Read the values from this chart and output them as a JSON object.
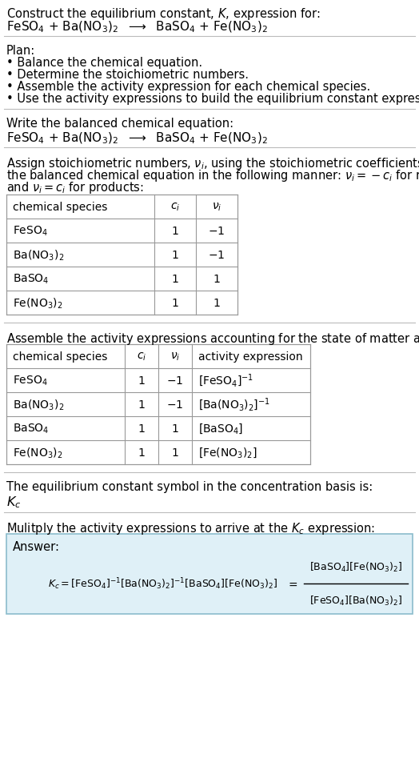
{
  "bg_color": "#ffffff",
  "text_color": "#000000",
  "title_line1": "Construct the equilibrium constant, $K$, expression for:",
  "reaction_equation": "FeSO$_4$ + Ba(NO$_3$)$_2$  $\\longrightarrow$  BaSO$_4$ + Fe(NO$_3$)$_2$",
  "plan_header": "Plan:",
  "plan_bullets": [
    "• Balance the chemical equation.",
    "• Determine the stoichiometric numbers.",
    "• Assemble the activity expression for each chemical species.",
    "• Use the activity expressions to build the equilibrium constant expression."
  ],
  "section2_header": "Write the balanced chemical equation:",
  "section2_equation": "FeSO$_4$ + Ba(NO$_3$)$_2$  $\\longrightarrow$  BaSO$_4$ + Fe(NO$_3$)$_2$",
  "section3_header_parts": [
    "Assign stoichiometric numbers, $\\nu_i$, using the stoichiometric coefficients, $c_i$, from",
    "the balanced chemical equation in the following manner: $\\nu_i = -c_i$ for reactants",
    "and $\\nu_i = c_i$ for products:"
  ],
  "table1_headers": [
    "chemical species",
    "$c_i$",
    "$\\nu_i$"
  ],
  "table1_rows": [
    [
      "FeSO$_4$",
      "1",
      "$-$1"
    ],
    [
      "Ba(NO$_3$)$_2$",
      "1",
      "$-$1"
    ],
    [
      "BaSO$_4$",
      "1",
      "1"
    ],
    [
      "Fe(NO$_3$)$_2$",
      "1",
      "1"
    ]
  ],
  "section4_header": "Assemble the activity expressions accounting for the state of matter and $\\nu_i$:",
  "table2_headers": [
    "chemical species",
    "$c_i$",
    "$\\nu_i$",
    "activity expression"
  ],
  "table2_rows": [
    [
      "FeSO$_4$",
      "1",
      "$-$1",
      "[FeSO$_4$]$^{-1}$"
    ],
    [
      "Ba(NO$_3$)$_2$",
      "1",
      "$-$1",
      "[Ba(NO$_3$)$_2$]$^{-1}$"
    ],
    [
      "BaSO$_4$",
      "1",
      "1",
      "[BaSO$_4$]"
    ],
    [
      "Fe(NO$_3$)$_2$",
      "1",
      "1",
      "[Fe(NO$_3$)$_2$]"
    ]
  ],
  "section5_header": "The equilibrium constant symbol in the concentration basis is:",
  "section5_symbol": "$K_c$",
  "section6_header": "Mulitply the activity expressions to arrive at the $K_c$ expression:",
  "answer_label": "Answer:",
  "answer_box_color": "#dff0f7",
  "answer_box_border": "#8bbccc",
  "table_border_color": "#999999"
}
